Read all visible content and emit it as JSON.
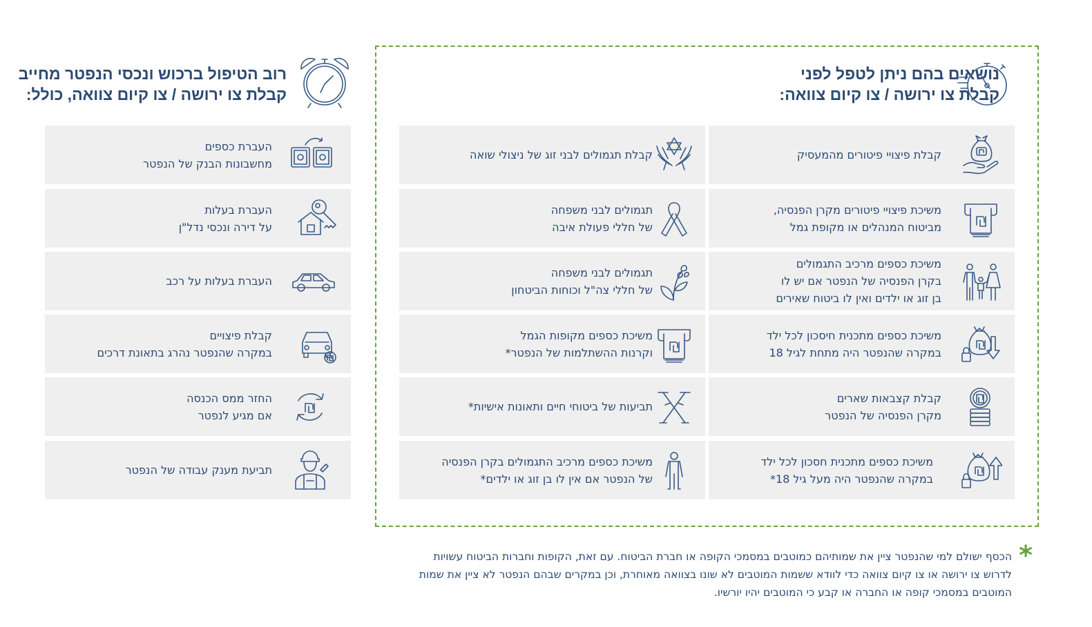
{
  "right_panel": {
    "heading_line1": "נושאים בהם ניתן לטפל לפני",
    "heading_line2": "קבלת צו ירושה / צו קיום צוואה:",
    "heading_icon": "stopwatch-icon",
    "column_a": [
      {
        "icon": "money-bag-hand-icon",
        "lines": [
          "קבלת פיצויי פיטורים מהמעסיק"
        ]
      },
      {
        "icon": "atm-withdraw-icon",
        "lines": [
          "משיכת פיצויי פיטורים מקרן הפנסיה,",
          "מביטוח המנהלים או מקופת גמל"
        ]
      },
      {
        "icon": "family-icon",
        "lines": [
          "משיכת כספים מרכיב התגמולים",
          "בקרן הפנסיה של הנפטר אם יש לו",
          "בן זוג או ילדים ואין לו ביטוח שאירים"
        ]
      },
      {
        "icon": "money-bag-lock-down-icon",
        "lines": [
          "משיכת כספים מתכנית חיסכון לכל ילד",
          "במקרה שהנפטר היה מתחת לגיל 18"
        ]
      },
      {
        "icon": "coin-stack-icon",
        "lines": [
          "קבלת קצבאות שארים",
          "מקרן הפנסיה של הנפטר"
        ]
      },
      {
        "icon": "money-bag-lock-up-icon",
        "lines": [
          "משיכת כספים מתכנית חסכון לכל ילד",
          "במקרה שהנפטר היה מעל גיל 18*"
        ]
      }
    ],
    "column_b": [
      {
        "icon": "star-of-david-hands-icon",
        "lines": [
          "קבלת תגמולים לבני זוג של ניצולי שואה"
        ]
      },
      {
        "icon": "ribbon-icon",
        "lines": [
          "תגמולים לבני משפחה",
          "של חללי פעולת איבה"
        ]
      },
      {
        "icon": "lily-flower-icon",
        "lines": [
          "תגמולים לבני משפחה",
          "של חללי צה\"ל וכוחות הביטחון"
        ]
      },
      {
        "icon": "atm-withdraw-icon",
        "lines": [
          "משיכת כספים מקופות הגמל",
          "וקרנות ההשתלמות של הנפטר*"
        ]
      },
      {
        "icon": "crutches-icon",
        "lines": [
          "תביעות של ביטוחי חיים ותאונות אישיות*"
        ]
      },
      {
        "icon": "single-person-icon",
        "lines": [
          "משיכת כספים מרכיב התגמולים בקרן הפנסיה",
          "של הנפטר אם אין לו בן זוג או ילדים*"
        ]
      }
    ]
  },
  "left_panel": {
    "heading_line1": "רוב הטיפול ברכוש ונכסי הנפטר מחייב",
    "heading_line2": "קבלת צו ירושה / צו קיום צוואה, כולל:",
    "heading_icon": "alarm-clock-icon",
    "items": [
      {
        "icon": "safe-transfer-icon",
        "lines": [
          "העברת כספים",
          "מחשבונות הבנק של הנפטר"
        ]
      },
      {
        "icon": "house-key-icon",
        "lines": [
          "העברת בעלות",
          "על דירה ונכסי נדל\"ן"
        ]
      },
      {
        "icon": "car-side-icon",
        "lines": [
          "העברת בעלות על רכב"
        ]
      },
      {
        "icon": "car-front-money-icon",
        "lines": [
          "קבלת פיצויים",
          "במקרה שהנפטר נהרג בתאונת דרכים"
        ]
      },
      {
        "icon": "refund-cycle-icon",
        "lines": [
          "החזר ממס הכנסה",
          "אם מגיע לנפטר"
        ]
      },
      {
        "icon": "worker-icon",
        "lines": [
          "תביעת מענק עבודה של הנפטר"
        ]
      }
    ]
  },
  "footnote": {
    "star": "*",
    "lines": [
      "הכסף ישולם למי שהנפטר ציין את שמותיהם כמוטבים במסמכי הקופה או חברת הביטוח. עם זאת, הקופות וחברות הביטוח עשויות",
      "לדרוש צו ירושה או צו קיום צוואה כדי לוודא ששמות המוטבים לא שונו בצוואה מאוחרת, וכן במקרים שבהם הנפטר לא ציין את שמות",
      "המוטבים במסמכי קופה או החברה או קבע כי המוטבים יהיו יורשיו."
    ]
  },
  "colors": {
    "text": "#2c4a73",
    "icon": "#3a5a85",
    "cell_bg": "#efefef",
    "dash_border": "#6aa33a",
    "star": "#6aa33a"
  }
}
